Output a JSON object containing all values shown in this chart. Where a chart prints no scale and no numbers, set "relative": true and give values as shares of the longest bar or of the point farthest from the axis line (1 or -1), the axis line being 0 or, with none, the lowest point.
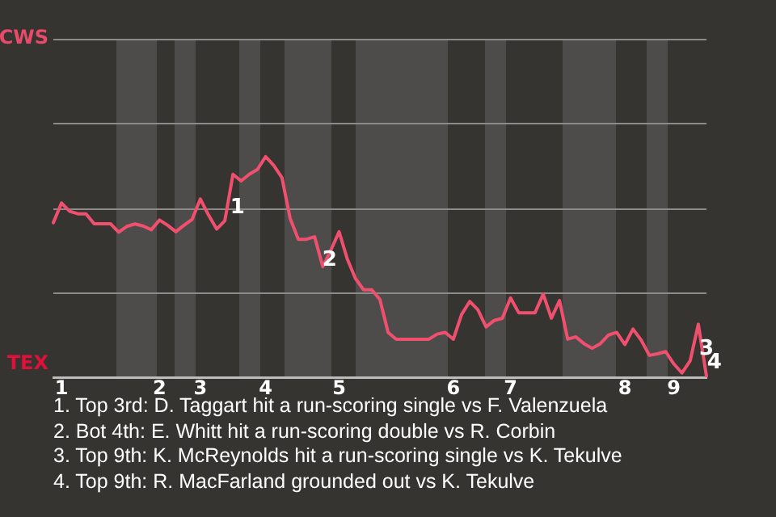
{
  "chart_data": {
    "type": "line",
    "relative": true,
    "categories": [
      null,
      "1",
      null,
      null,
      null,
      null,
      null,
      null,
      null,
      null,
      null,
      null,
      null,
      "2",
      null,
      null,
      null,
      null,
      "3",
      null,
      null,
      null,
      null,
      null,
      null,
      null,
      "4",
      null,
      null,
      null,
      null,
      null,
      null,
      null,
      null,
      "5",
      null,
      null,
      null,
      null,
      null,
      null,
      null,
      null,
      null,
      null,
      null,
      null,
      null,
      "6",
      null,
      null,
      null,
      null,
      null,
      null,
      "7",
      null,
      null,
      null,
      null,
      null,
      null,
      null,
      null,
      null,
      null,
      null,
      null,
      null,
      "8",
      null,
      null,
      null,
      null,
      null,
      "9",
      null,
      null,
      null,
      null
    ],
    "series": [
      {
        "color": "#f0506e",
        "values": [
          0.701,
          0.79,
          0.752,
          0.741,
          0.741,
          0.696,
          0.696,
          0.696,
          0.658,
          0.684,
          0.695,
          0.686,
          0.669,
          0.713,
          0.689,
          0.66,
          0.689,
          0.716,
          0.808,
          0.736,
          0.672,
          0.709,
          0.92,
          0.89,
          0.92,
          0.942,
          1,
          0.96,
          0.905,
          0.721,
          0.626,
          0.626,
          0.637,
          0.502,
          0.577,
          0.66,
          0.537,
          0.448,
          0.397,
          0.397,
          0.353,
          0.204,
          0.173,
          0.173,
          0.173,
          0.173,
          0.173,
          0.196,
          0.204,
          0.173,
          0.285,
          0.344,
          0.307,
          0.229,
          0.258,
          0.268,
          0.36,
          0.293,
          0.293,
          0.293,
          0.377,
          0.268,
          0.348,
          0.173,
          0.184,
          0.153,
          0.132,
          0.153,
          0.192,
          0.204,
          0.149,
          0.219,
          0.169,
          0.1,
          0.107,
          0.117,
          0.061,
          0.02,
          0.075,
          0.241,
          0.005
        ]
      }
    ],
    "marker": "none",
    "ref_lines": [
      {
        "axis": "y",
        "value": 0.383,
        "color": "#8c8b89"
      },
      {
        "axis": "y",
        "value": 0.767,
        "color": "#8c8b89"
      },
      {
        "axis": "y",
        "value": 1.15,
        "color": "#8c8b89"
      },
      {
        "axis": "y",
        "value": 1.534,
        "color": "#8c8b89"
      }
    ],
    "annotations": [
      "CWS",
      "TEX",
      "1",
      "2",
      "3",
      "4",
      "1. Top 3rd: D. Taggart hit a run-scoring single vs F. Valenzuela",
      "2. Bot 4th: E. Whitt hit a run-scoring double vs R. Corbin",
      "3. Top 9th: K. McReynolds hit a run-scoring single vs K. Tekulve",
      "4. Top 9th: R. MacFarland grounded out vs K. Tekulve"
    ]
  }
}
